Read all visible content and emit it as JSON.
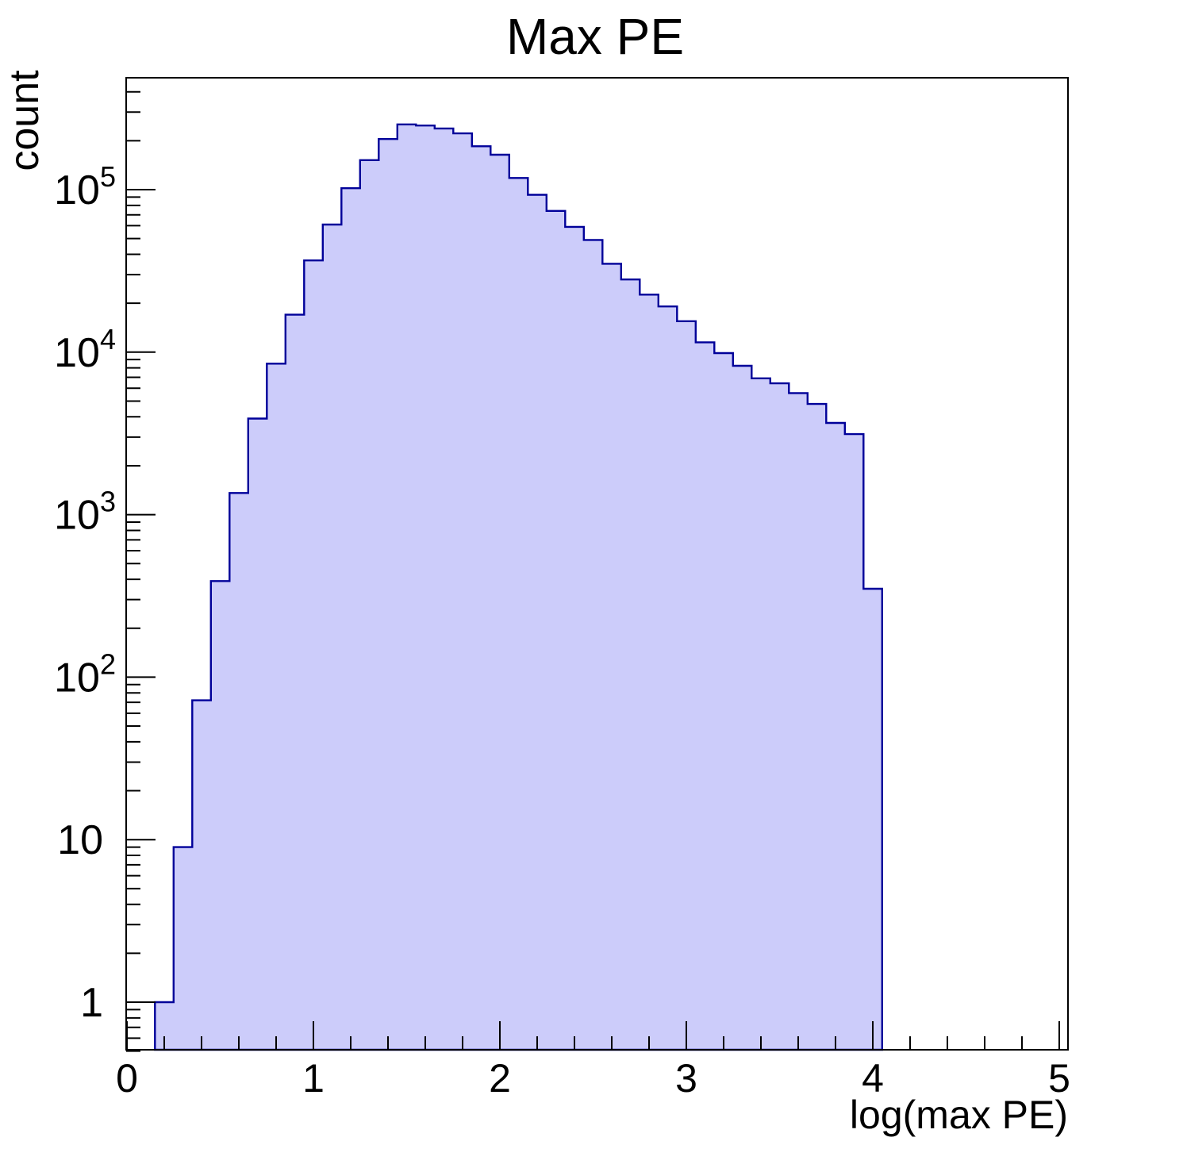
{
  "chart_data": {
    "type": "bar",
    "subtype": "step-histogram-filled",
    "title": "Max PE",
    "xlabel": "log(max PE)",
    "ylabel": "count",
    "y_scale": "log",
    "grid": false,
    "legend": "none",
    "x_range": [
      0,
      5.05
    ],
    "y_range": [
      0.5,
      480000
    ],
    "bin_start": 0.15,
    "bin_width": 0.1,
    "counts": [
      1,
      9,
      72,
      390,
      1360,
      3900,
      8500,
      17000,
      36700,
      61000,
      102000,
      152000,
      205000,
      252000,
      248000,
      238000,
      222000,
      185000,
      164000,
      118000,
      93000,
      74000,
      59000,
      49000,
      35000,
      28000,
      22600,
      19100,
      15500,
      11500,
      9870,
      8240,
      6900,
      6430,
      5600,
      4800,
      3670,
      3130,
      350
    ],
    "x_major_ticks": [
      0,
      1,
      2,
      3,
      4,
      5
    ],
    "x_minor_tick_step": 0.2,
    "y_major_ticks": [
      {
        "value": 1,
        "label": "1",
        "exponent": ""
      },
      {
        "value": 10,
        "label": "10",
        "exponent": ""
      },
      {
        "value": 100,
        "label": "10",
        "exponent": "2"
      },
      {
        "value": 1000,
        "label": "10",
        "exponent": "3"
      },
      {
        "value": 10000,
        "label": "10",
        "exponent": "4"
      },
      {
        "value": 100000,
        "label": "10",
        "exponent": "5"
      }
    ],
    "colors": {
      "fill": "#CCCCFA",
      "line": "#000099",
      "frame": "#000000",
      "text": "#000000",
      "background": "#FFFFFF"
    }
  }
}
